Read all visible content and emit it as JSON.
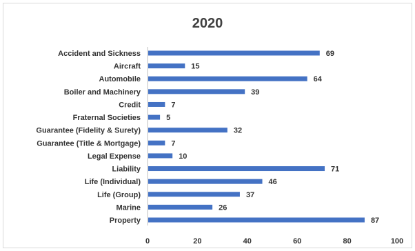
{
  "chart_data": {
    "type": "bar",
    "orientation": "horizontal",
    "title": "2020",
    "xlabel": "",
    "ylabel": "",
    "categories": [
      "Accident and Sickness",
      "Aircraft",
      "Automobile",
      "Boiler and Machinery",
      "Credit",
      "Fraternal Societies",
      "Guarantee (Fidelity & Surety)",
      "Guarantee (Title & Mortgage)",
      "Legal Expense",
      "Liability",
      "Life (Individual)",
      "Life (Group)",
      "Marine",
      "Property"
    ],
    "values": [
      69,
      15,
      64,
      39,
      7,
      5,
      32,
      7,
      10,
      71,
      46,
      37,
      26,
      87
    ],
    "xlim": [
      0,
      100
    ],
    "xticks": [
      0,
      20,
      40,
      60,
      80,
      100
    ],
    "grid": false,
    "legend": "none",
    "bar_color": "#4472c4"
  }
}
